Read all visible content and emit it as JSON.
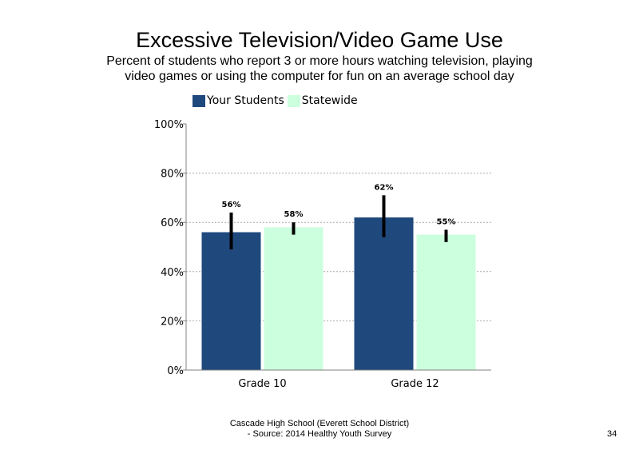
{
  "chart_data": {
    "type": "bar",
    "title": "Excessive Television/Video Game Use",
    "subtitle": "Percent of students who report 3 or more hours watching television, playing video games or using the computer for fun on an average school day",
    "categories": [
      "Grade 10",
      "Grade 12"
    ],
    "series": [
      {
        "name": "Your Students",
        "color": "#1f497d",
        "values": [
          56,
          62
        ],
        "labels": [
          "56%",
          "62%"
        ],
        "error_low": [
          49,
          54
        ],
        "error_high": [
          64,
          71
        ]
      },
      {
        "name": "Statewide",
        "color": "#ccffdd",
        "values": [
          58,
          55
        ],
        "labels": [
          "58%",
          "55%"
        ],
        "error_low": [
          55,
          52
        ],
        "error_high": [
          60,
          57
        ]
      }
    ],
    "ylim": [
      0,
      100
    ],
    "yticks": [
      0,
      20,
      40,
      60,
      80,
      100
    ],
    "ytick_labels": [
      "0%",
      "20%",
      "40%",
      "60%",
      "80%",
      "100%"
    ],
    "grid": true,
    "legend_position": "top-left"
  },
  "footer": {
    "line1": "Cascade High School (Everett School District)",
    "line2": "- Source: 2014 Healthy  Youth Survey"
  },
  "page_number": "34"
}
